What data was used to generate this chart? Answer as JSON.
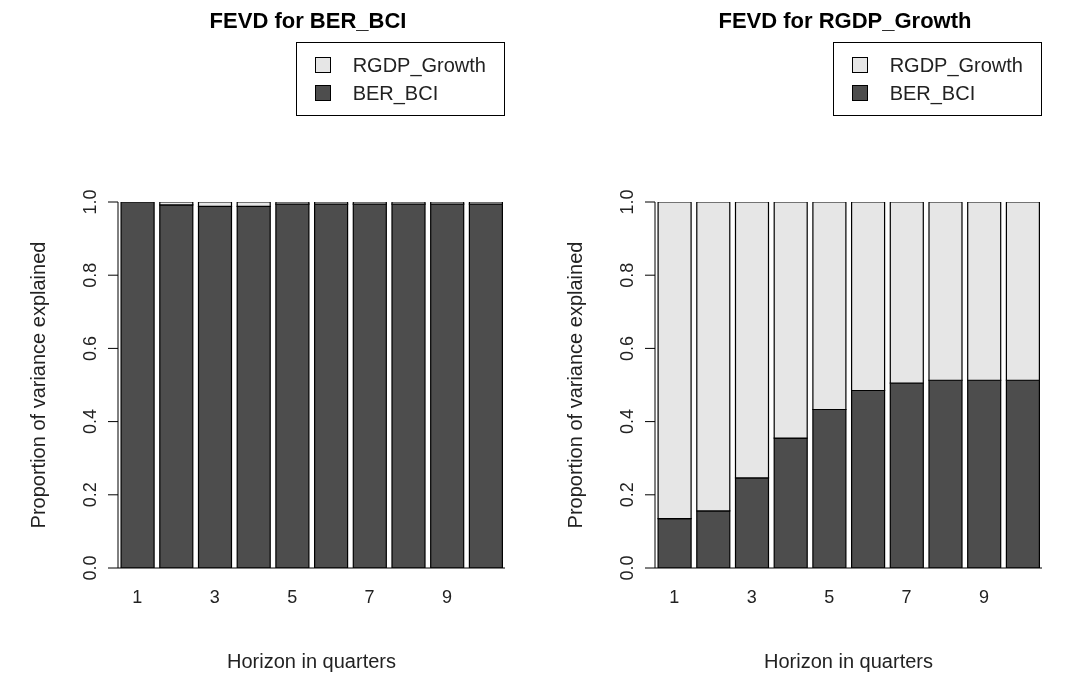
{
  "chart_data": [
    {
      "type": "bar",
      "title": "FEVD for BER_BCI",
      "xlabel": "Horizon in quarters",
      "ylabel": "Proportion of variance explained",
      "categories": [
        "1",
        null,
        "3",
        null,
        "5",
        null,
        "7",
        null,
        "9",
        null
      ],
      "stacked": true,
      "series": [
        {
          "name": "BER_BCI",
          "color": "#4d4d4d",
          "values": [
            1.0,
            0.992,
            0.988,
            0.988,
            0.994,
            0.994,
            0.994,
            0.994,
            0.994,
            0.994
          ]
        },
        {
          "name": "RGDP_Growth",
          "color": "#e6e6e6",
          "values": [
            0.0,
            0.008,
            0.012,
            0.012,
            0.006,
            0.006,
            0.006,
            0.006,
            0.006,
            0.006
          ]
        }
      ],
      "ylim": [
        0,
        1
      ],
      "yticks": [
        {
          "value": 0,
          "label": "0.0"
        },
        {
          "value": 0.2,
          "label": "0.2"
        },
        {
          "value": 0.4,
          "label": "0.4"
        },
        {
          "value": 0.6,
          "label": "0.6"
        },
        {
          "value": 0.8,
          "label": "0.8"
        },
        {
          "value": 1,
          "label": "1.0"
        }
      ],
      "legend": "top right"
    },
    {
      "type": "bar",
      "title": "FEVD for RGDP_Growth",
      "xlabel": "Horizon in quarters",
      "ylabel": "Proportion of variance explained",
      "categories": [
        "1",
        null,
        "3",
        null,
        "5",
        null,
        "7",
        null,
        "9",
        null
      ],
      "stacked": true,
      "series": [
        {
          "name": "BER_BCI",
          "color": "#4d4d4d",
          "values": [
            0.135,
            0.156,
            0.246,
            0.355,
            0.433,
            0.485,
            0.505,
            0.513,
            0.513,
            0.513
          ]
        },
        {
          "name": "RGDP_Growth",
          "color": "#e6e6e6",
          "values": [
            0.865,
            0.844,
            0.754,
            0.645,
            0.567,
            0.515,
            0.495,
            0.487,
            0.487,
            0.487
          ]
        }
      ],
      "ylim": [
        0,
        1
      ],
      "yticks": [
        {
          "value": 0,
          "label": "0.0"
        },
        {
          "value": 0.2,
          "label": "0.2"
        },
        {
          "value": 0.4,
          "label": "0.4"
        },
        {
          "value": 0.6,
          "label": "0.6"
        },
        {
          "value": 0.8,
          "label": "0.8"
        },
        {
          "value": 1,
          "label": "1.0"
        }
      ],
      "legend": "top right"
    }
  ]
}
